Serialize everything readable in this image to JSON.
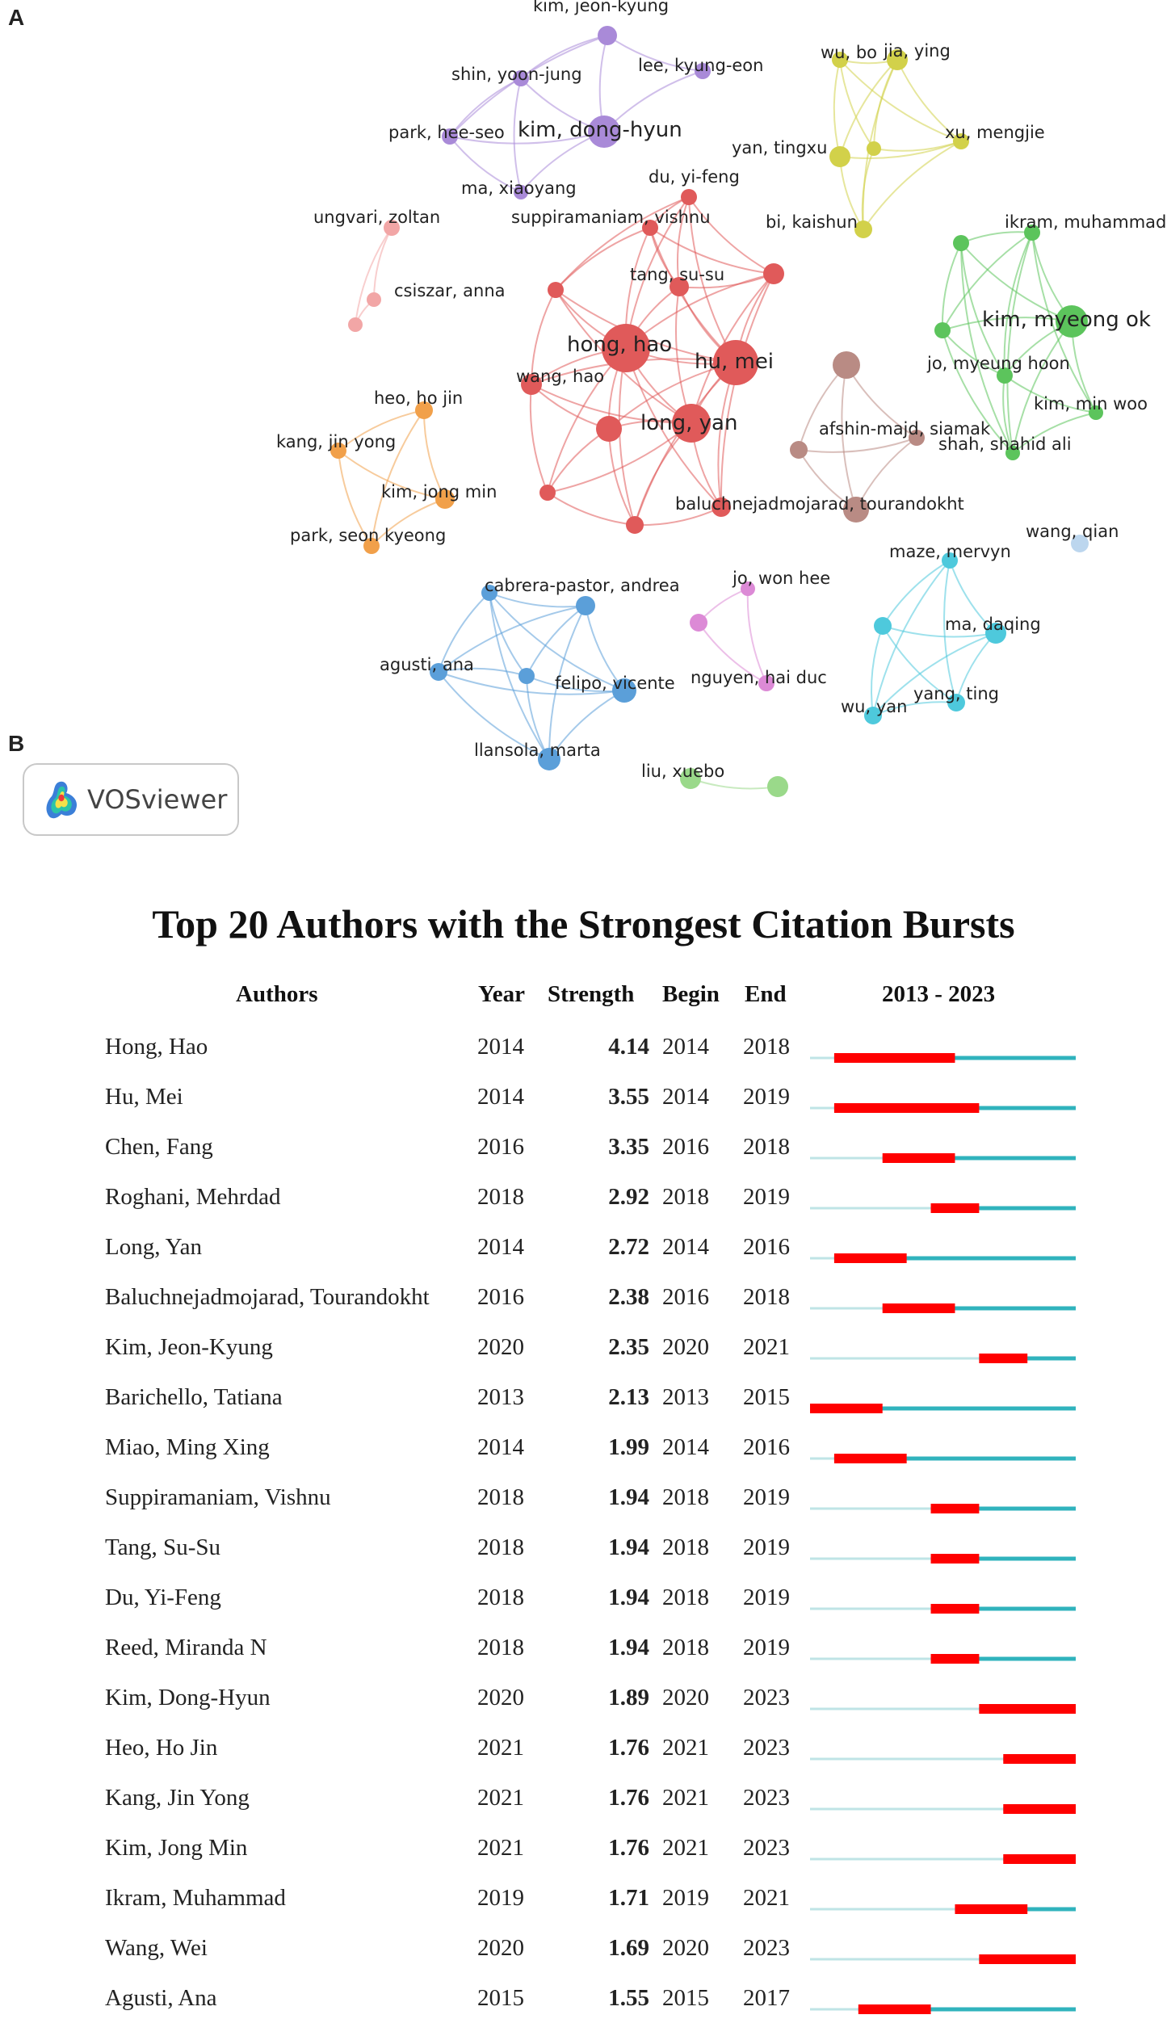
{
  "panel_a_label": "A",
  "panel_b_label": "B",
  "vosviewer_badge": {
    "text": "VOSviewer"
  },
  "network": {
    "nodes": [
      {
        "id": "kim_jeon_kyung",
        "label": "kim, jeon-kyung",
        "cluster": "purple"
      },
      {
        "id": "shin_yoon_jung",
        "label": "shin, yoon-jung",
        "cluster": "purple"
      },
      {
        "id": "lee_kyung_eon",
        "label": "lee, kyung-eon",
        "cluster": "purple"
      },
      {
        "id": "park_hee_seo",
        "label": "park, hee-seo",
        "cluster": "purple"
      },
      {
        "id": "kim_dong_hyun",
        "label": "kim, dong-hyun",
        "cluster": "purple"
      },
      {
        "id": "ma_xiaoyang",
        "label": "ma, xiaoyang",
        "cluster": "purple"
      },
      {
        "id": "wu_bo",
        "label": "wu, bo",
        "cluster": "yellow"
      },
      {
        "id": "jia_ying",
        "label": "jia, ying",
        "cluster": "yellow"
      },
      {
        "id": "yan_tingxu",
        "label": "yan, tingxu",
        "cluster": "yellow"
      },
      {
        "id": "yellow_mid",
        "label": "",
        "cluster": "yellow"
      },
      {
        "id": "xu_mengjie",
        "label": "xu, mengjie",
        "cluster": "yellow"
      },
      {
        "id": "bi_kaishun",
        "label": "bi, kaishun",
        "cluster": "yellow"
      },
      {
        "id": "ungvari_zoltan",
        "label": "ungvari, zoltan",
        "cluster": "pink"
      },
      {
        "id": "csiszar_anna",
        "label": "csiszar, anna",
        "cluster": "pink"
      },
      {
        "id": "pink_low",
        "label": "",
        "cluster": "pink"
      },
      {
        "id": "du_yi_feng",
        "label": "du, yi-feng",
        "cluster": "red"
      },
      {
        "id": "suppiramaniam_vishnu",
        "label": "suppiramaniam, vishnu",
        "cluster": "red"
      },
      {
        "id": "tang_su_su",
        "label": "tang, su-su",
        "cluster": "red"
      },
      {
        "id": "red_right",
        "label": "",
        "cluster": "red"
      },
      {
        "id": "red_left",
        "label": "",
        "cluster": "red"
      },
      {
        "id": "hong_hao",
        "label": "hong, hao",
        "cluster": "red"
      },
      {
        "id": "hu_mei",
        "label": "hu, mei",
        "cluster": "red"
      },
      {
        "id": "wang_hao",
        "label": "wang, hao",
        "cluster": "red"
      },
      {
        "id": "long_yan",
        "label": "long, yan",
        "cluster": "red"
      },
      {
        "id": "red_mid",
        "label": "",
        "cluster": "red"
      },
      {
        "id": "red_ll",
        "label": "",
        "cluster": "red"
      },
      {
        "id": "red_bottom",
        "label": "",
        "cluster": "red"
      },
      {
        "id": "red_br",
        "label": "",
        "cluster": "red"
      },
      {
        "id": "brown_top",
        "label": "",
        "cluster": "brown"
      },
      {
        "id": "afshin_majd_siamak",
        "label": "afshin-majd, siamak",
        "cluster": "brown"
      },
      {
        "id": "brown_left",
        "label": "",
        "cluster": "brown"
      },
      {
        "id": "baluchnejadmojarad_tourandokht",
        "label": "baluchnejadmojarad, tourandokht",
        "cluster": "brown"
      },
      {
        "id": "ikram_muhammad",
        "label": "ikram, muhammad",
        "cluster": "green"
      },
      {
        "id": "green_left",
        "label": "",
        "cluster": "green"
      },
      {
        "id": "kim_myeong_ok",
        "label": "kim, myeong ok",
        "cluster": "green"
      },
      {
        "id": "green_mid",
        "label": "",
        "cluster": "green"
      },
      {
        "id": "jo_myeung_hoon",
        "label": "jo, myeung hoon",
        "cluster": "green"
      },
      {
        "id": "kim_min_woo",
        "label": "kim, min woo",
        "cluster": "green"
      },
      {
        "id": "shah_shahid_ali",
        "label": "shah, shahid ali",
        "cluster": "green"
      },
      {
        "id": "heo_ho_jin",
        "label": "heo, ho jin",
        "cluster": "orange"
      },
      {
        "id": "kang_jin_yong",
        "label": "kang, jin yong",
        "cluster": "orange"
      },
      {
        "id": "kim_jong_min",
        "label": "kim, jong min",
        "cluster": "orange"
      },
      {
        "id": "park_seon_kyeong",
        "label": "park, seon kyeong",
        "cluster": "orange"
      },
      {
        "id": "cabrera_pastor_andrea",
        "label": "cabrera-pastor, andrea",
        "cluster": "blue"
      },
      {
        "id": "blue_right",
        "label": "",
        "cluster": "blue"
      },
      {
        "id": "blue_mid",
        "label": "",
        "cluster": "blue"
      },
      {
        "id": "agusti_ana",
        "label": "agusti, ana",
        "cluster": "blue"
      },
      {
        "id": "felipo_vicente",
        "label": "felipo, vicente",
        "cluster": "blue"
      },
      {
        "id": "llansola_marta",
        "label": "llansola, marta",
        "cluster": "blue"
      },
      {
        "id": "jo_won_hee",
        "label": "jo, won hee",
        "cluster": "violet"
      },
      {
        "id": "violet_left",
        "label": "",
        "cluster": "violet"
      },
      {
        "id": "nguyen_hai_duc",
        "label": "nguyen, hai duc",
        "cluster": "violet"
      },
      {
        "id": "maze_mervyn",
        "label": "maze, mervyn",
        "cluster": "cyan"
      },
      {
        "id": "cyan_left",
        "label": "",
        "cluster": "cyan"
      },
      {
        "id": "ma_daqing",
        "label": "ma, daqing",
        "cluster": "cyan"
      },
      {
        "id": "yang_ting",
        "label": "yang, ting",
        "cluster": "cyan"
      },
      {
        "id": "wu_yan",
        "label": "wu, yan",
        "cluster": "cyan"
      },
      {
        "id": "wang_qian",
        "label": "wang, qian",
        "cluster": "lightblue"
      },
      {
        "id": "liu_xuebo",
        "label": "liu, xuebo",
        "cluster": "lightgreen"
      },
      {
        "id": "lightgreen_right",
        "label": "",
        "cluster": "lightgreen"
      }
    ],
    "edges": [
      [
        "kim_jeon_kyung",
        "shin_yoon_jung"
      ],
      [
        "kim_jeon_kyung",
        "kim_dong_hyun"
      ],
      [
        "kim_jeon_kyung",
        "lee_kyung_eon"
      ],
      [
        "kim_jeon_kyung",
        "park_hee_seo"
      ],
      [
        "shin_yoon_jung",
        "park_hee_seo"
      ],
      [
        "shin_yoon_jung",
        "kim_dong_hyun"
      ],
      [
        "shin_yoon_jung",
        "ma_xiaoyang"
      ],
      [
        "park_hee_seo",
        "kim_dong_hyun"
      ],
      [
        "park_hee_seo",
        "ma_xiaoyang"
      ],
      [
        "kim_dong_hyun",
        "ma_xiaoyang"
      ],
      [
        "lee_kyung_eon",
        "kim_dong_hyun"
      ],
      [
        "wu_bo",
        "jia_ying"
      ],
      [
        "wu_bo",
        "yan_tingxu"
      ],
      [
        "wu_bo",
        "yellow_mid"
      ],
      [
        "wu_bo",
        "xu_mengjie"
      ],
      [
        "jia_ying",
        "yan_tingxu"
      ],
      [
        "jia_ying",
        "yellow_mid"
      ],
      [
        "jia_ying",
        "xu_mengjie"
      ],
      [
        "jia_ying",
        "bi_kaishun"
      ],
      [
        "yan_tingxu",
        "bi_kaishun"
      ],
      [
        "yellow_mid",
        "xu_mengjie"
      ],
      [
        "yellow_mid",
        "bi_kaishun"
      ],
      [
        "xu_mengjie",
        "bi_kaishun"
      ],
      [
        "yan_tingxu",
        "xu_mengjie"
      ],
      [
        "ungvari_zoltan",
        "pink_low"
      ],
      [
        "ungvari_zoltan",
        "csiszar_anna"
      ],
      [
        "csiszar_anna",
        "pink_low"
      ],
      [
        "du_yi_feng",
        "suppiramaniam_vishnu"
      ],
      [
        "du_yi_feng",
        "tang_su_su"
      ],
      [
        "du_yi_feng",
        "hong_hao"
      ],
      [
        "du_yi_feng",
        "hu_mei"
      ],
      [
        "du_yi_feng",
        "red_right"
      ],
      [
        "du_yi_feng",
        "red_left"
      ],
      [
        "suppiramaniam_vishnu",
        "tang_su_su"
      ],
      [
        "suppiramaniam_vishnu",
        "hong_hao"
      ],
      [
        "suppiramaniam_vishnu",
        "hu_mei"
      ],
      [
        "suppiramaniam_vishnu",
        "red_left"
      ],
      [
        "suppiramaniam_vishnu",
        "red_right"
      ],
      [
        "tang_su_su",
        "hong_hao"
      ],
      [
        "tang_su_su",
        "hu_mei"
      ],
      [
        "tang_su_su",
        "red_right"
      ],
      [
        "tang_su_su",
        "long_yan"
      ],
      [
        "red_left",
        "hong_hao"
      ],
      [
        "red_left",
        "wang_hao"
      ],
      [
        "red_left",
        "hu_mei"
      ],
      [
        "red_left",
        "long_yan"
      ],
      [
        "red_right",
        "hu_mei"
      ],
      [
        "red_right",
        "hong_hao"
      ],
      [
        "red_right",
        "long_yan"
      ],
      [
        "hong_hao",
        "hu_mei"
      ],
      [
        "hong_hao",
        "wang_hao"
      ],
      [
        "hong_hao",
        "long_yan"
      ],
      [
        "hong_hao",
        "red_mid"
      ],
      [
        "hong_hao",
        "red_ll"
      ],
      [
        "hong_hao",
        "red_bottom"
      ],
      [
        "hong_hao",
        "red_br"
      ],
      [
        "hu_mei",
        "long_yan"
      ],
      [
        "hu_mei",
        "wang_hao"
      ],
      [
        "hu_mei",
        "red_mid"
      ],
      [
        "hu_mei",
        "red_br"
      ],
      [
        "hu_mei",
        "red_bottom"
      ],
      [
        "wang_hao",
        "red_mid"
      ],
      [
        "wang_hao",
        "red_ll"
      ],
      [
        "wang_hao",
        "long_yan"
      ],
      [
        "long_yan",
        "red_mid"
      ],
      [
        "long_yan",
        "red_bottom"
      ],
      [
        "long_yan",
        "red_br"
      ],
      [
        "red_mid",
        "red_ll"
      ],
      [
        "red_mid",
        "red_bottom"
      ],
      [
        "red_ll",
        "red_bottom"
      ],
      [
        "red_bottom",
        "red_br"
      ],
      [
        "red_ll",
        "long_yan"
      ],
      [
        "red_right",
        "red_br"
      ],
      [
        "brown_top",
        "afshin_majd_siamak"
      ],
      [
        "brown_top",
        "brown_left"
      ],
      [
        "brown_top",
        "baluchnejadmojarad_tourandokht"
      ],
      [
        "brown_left",
        "baluchnejadmojarad_tourandokht"
      ],
      [
        "afshin_majd_siamak",
        "baluchnejadmojarad_tourandokht"
      ],
      [
        "brown_left",
        "afshin_majd_siamak"
      ],
      [
        "ikram_muhammad",
        "green_left"
      ],
      [
        "ikram_muhammad",
        "kim_myeong_ok"
      ],
      [
        "ikram_muhammad",
        "green_mid"
      ],
      [
        "ikram_muhammad",
        "jo_myeung_hoon"
      ],
      [
        "ikram_muhammad",
        "kim_min_woo"
      ],
      [
        "ikram_muhammad",
        "shah_shahid_ali"
      ],
      [
        "green_left",
        "kim_myeong_ok"
      ],
      [
        "green_left",
        "green_mid"
      ],
      [
        "green_left",
        "jo_myeung_hoon"
      ],
      [
        "green_left",
        "shah_shahid_ali"
      ],
      [
        "kim_myeong_ok",
        "green_mid"
      ],
      [
        "kim_myeong_ok",
        "jo_myeung_hoon"
      ],
      [
        "kim_myeong_ok",
        "kim_min_woo"
      ],
      [
        "kim_myeong_ok",
        "shah_shahid_ali"
      ],
      [
        "green_mid",
        "shah_shahid_ali"
      ],
      [
        "green_mid",
        "jo_myeung_hoon"
      ],
      [
        "jo_myeung_hoon",
        "kim_min_woo"
      ],
      [
        "jo_myeung_hoon",
        "shah_shahid_ali"
      ],
      [
        "kim_min_woo",
        "shah_shahid_ali"
      ],
      [
        "heo_ho_jin",
        "kang_jin_yong"
      ],
      [
        "heo_ho_jin",
        "kim_jong_min"
      ],
      [
        "heo_ho_jin",
        "park_seon_kyeong"
      ],
      [
        "kang_jin_yong",
        "kim_jong_min"
      ],
      [
        "kang_jin_yong",
        "park_seon_kyeong"
      ],
      [
        "kim_jong_min",
        "park_seon_kyeong"
      ],
      [
        "cabrera_pastor_andrea",
        "blue_right"
      ],
      [
        "cabrera_pastor_andrea",
        "blue_mid"
      ],
      [
        "cabrera_pastor_andrea",
        "agusti_ana"
      ],
      [
        "cabrera_pastor_andrea",
        "felipo_vicente"
      ],
      [
        "cabrera_pastor_andrea",
        "llansola_marta"
      ],
      [
        "blue_right",
        "blue_mid"
      ],
      [
        "blue_right",
        "agusti_ana"
      ],
      [
        "blue_right",
        "felipo_vicente"
      ],
      [
        "blue_right",
        "llansola_marta"
      ],
      [
        "blue_mid",
        "agusti_ana"
      ],
      [
        "blue_mid",
        "felipo_vicente"
      ],
      [
        "blue_mid",
        "llansola_marta"
      ],
      [
        "agusti_ana",
        "felipo_vicente"
      ],
      [
        "agusti_ana",
        "llansola_marta"
      ],
      [
        "felipo_vicente",
        "llansola_marta"
      ],
      [
        "jo_won_hee",
        "violet_left"
      ],
      [
        "jo_won_hee",
        "nguyen_hai_duc"
      ],
      [
        "violet_left",
        "nguyen_hai_duc"
      ],
      [
        "maze_mervyn",
        "cyan_left"
      ],
      [
        "maze_mervyn",
        "ma_daqing"
      ],
      [
        "maze_mervyn",
        "yang_ting"
      ],
      [
        "maze_mervyn",
        "wu_yan"
      ],
      [
        "cyan_left",
        "ma_daqing"
      ],
      [
        "cyan_left",
        "yang_ting"
      ],
      [
        "cyan_left",
        "wu_yan"
      ],
      [
        "ma_daqing",
        "yang_ting"
      ],
      [
        "ma_daqing",
        "wu_yan"
      ],
      [
        "yang_ting",
        "wu_yan"
      ],
      [
        "liu_xuebo",
        "lightgreen_right"
      ]
    ]
  },
  "cluster_colors": {
    "purple": "#a98ad8",
    "yellow": "#d2d14a",
    "pink": "#f2a6a6",
    "red": "#e05a5a",
    "brown": "#b98b84",
    "green": "#5cc45c",
    "orange": "#f1a04a",
    "blue": "#5b9fd9",
    "violet": "#dc8ad6",
    "cyan": "#4ec9dc",
    "lightblue": "#bcd6ee",
    "lightgreen": "#9ad98a"
  },
  "burst_table": {
    "title": "Top 20 Authors with the Strongest Citation Bursts",
    "headers": {
      "authors": "Authors",
      "year": "Year",
      "strength": "Strength",
      "begin": "Begin",
      "end": "End",
      "range": "2013 - 2023"
    },
    "timeline": {
      "start_year": 2013,
      "end_year": 2023
    },
    "colors": {
      "burst": "#ff0000",
      "active": "#30b3bd",
      "inactive": "#bfe4e6"
    },
    "rows": [
      {
        "author": "Hong, Hao",
        "year": "2014",
        "strength": "4.14",
        "begin": "2014",
        "end": "2018"
      },
      {
        "author": "Hu, Mei",
        "year": "2014",
        "strength": "3.55",
        "begin": "2014",
        "end": "2019"
      },
      {
        "author": "Chen, Fang",
        "year": "2016",
        "strength": "3.35",
        "begin": "2016",
        "end": "2018"
      },
      {
        "author": "Roghani, Mehrdad",
        "year": "2018",
        "strength": "2.92",
        "begin": "2018",
        "end": "2019"
      },
      {
        "author": "Long, Yan",
        "year": "2014",
        "strength": "2.72",
        "begin": "2014",
        "end": "2016"
      },
      {
        "author": "Baluchnejadmojarad, Tourandokht",
        "year": "2016",
        "strength": "2.38",
        "begin": "2016",
        "end": "2018"
      },
      {
        "author": "Kim, Jeon-Kyung",
        "year": "2020",
        "strength": "2.35",
        "begin": "2020",
        "end": "2021"
      },
      {
        "author": "Barichello, Tatiana",
        "year": "2013",
        "strength": "2.13",
        "begin": "2013",
        "end": "2015"
      },
      {
        "author": "Miao, Ming Xing",
        "year": "2014",
        "strength": "1.99",
        "begin": "2014",
        "end": "2016"
      },
      {
        "author": "Suppiramaniam, Vishnu",
        "year": "2018",
        "strength": "1.94",
        "begin": "2018",
        "end": "2019"
      },
      {
        "author": "Tang, Su-Su",
        "year": "2018",
        "strength": "1.94",
        "begin": "2018",
        "end": "2019"
      },
      {
        "author": "Du, Yi-Feng",
        "year": "2018",
        "strength": "1.94",
        "begin": "2018",
        "end": "2019"
      },
      {
        "author": "Reed, Miranda N",
        "year": "2018",
        "strength": "1.94",
        "begin": "2018",
        "end": "2019"
      },
      {
        "author": "Kim, Dong-Hyun",
        "year": "2020",
        "strength": "1.89",
        "begin": "2020",
        "end": "2023"
      },
      {
        "author": "Heo, Ho Jin",
        "year": "2021",
        "strength": "1.76",
        "begin": "2021",
        "end": "2023"
      },
      {
        "author": "Kang, Jin Yong",
        "year": "2021",
        "strength": "1.76",
        "begin": "2021",
        "end": "2023"
      },
      {
        "author": "Kim, Jong Min",
        "year": "2021",
        "strength": "1.76",
        "begin": "2021",
        "end": "2023"
      },
      {
        "author": "Ikram, Muhammad",
        "year": "2019",
        "strength": "1.71",
        "begin": "2019",
        "end": "2021"
      },
      {
        "author": "Wang, Wei",
        "year": "2020",
        "strength": "1.69",
        "begin": "2020",
        "end": "2023"
      },
      {
        "author": "Agusti, Ana",
        "year": "2015",
        "strength": "1.55",
        "begin": "2015",
        "end": "2017"
      }
    ]
  }
}
